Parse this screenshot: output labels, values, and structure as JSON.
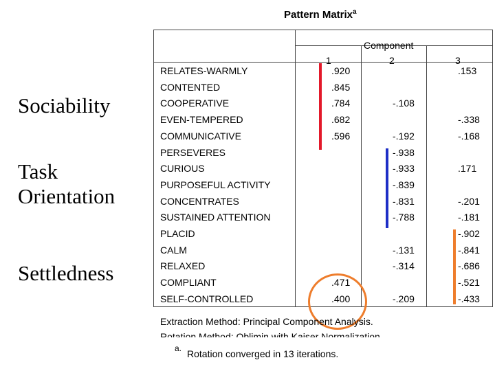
{
  "title": "Pattern Matrix",
  "title_sup": "a",
  "side_labels": {
    "sociability": "Sociability",
    "task_line1": "Task",
    "task_line2": "Orientation",
    "settledness": "Settledness"
  },
  "header": {
    "component": "Component",
    "col1": "1",
    "col2": "2",
    "col3": "3"
  },
  "rows": [
    {
      "name": "RELATES-WARMLY",
      "c1": ".920",
      "c2": "",
      "c3": ".153"
    },
    {
      "name": "CONTENTED",
      "c1": ".845",
      "c2": "",
      "c3": ""
    },
    {
      "name": "COOPERATIVE",
      "c1": ".784",
      "c2": "-.108",
      "c3": ""
    },
    {
      "name": "EVEN-TEMPERED",
      "c1": ".682",
      "c2": "",
      "c3": "-.338"
    },
    {
      "name": "COMMUNICATIVE",
      "c1": ".596",
      "c2": "-.192",
      "c3": "-.168"
    },
    {
      "name": "PERSEVERES",
      "c1": "",
      "c2": "-.938",
      "c3": ""
    },
    {
      "name": "CURIOUS",
      "c1": "",
      "c2": "-.933",
      "c3": ".171"
    },
    {
      "name": "PURPOSEFUL ACTIVITY",
      "c1": "",
      "c2": "-.839",
      "c3": ""
    },
    {
      "name": "CONCENTRATES",
      "c1": "",
      "c2": "-.831",
      "c3": "-.201"
    },
    {
      "name": "SUSTAINED ATTENTION",
      "c1": "",
      "c2": "-.788",
      "c3": "-.181"
    },
    {
      "name": "PLACID",
      "c1": "",
      "c2": "",
      "c3": "-.902"
    },
    {
      "name": "CALM",
      "c1": "",
      "c2": "-.131",
      "c3": "-.841"
    },
    {
      "name": "RELAXED",
      "c1": "",
      "c2": "-.314",
      "c3": "-.686"
    },
    {
      "name": "COMPLIANT",
      "c1": ".471",
      "c2": "",
      "c3": "-.521"
    },
    {
      "name": "SELF-CONTROLLED",
      "c1": ".400",
      "c2": "-.209",
      "c3": "-.433"
    }
  ],
  "footer": {
    "extraction": "Extraction Method: Principal Component Analysis.",
    "rotation": "Rotation Method: Oblimin with Kaiser Normalization.",
    "note_marker": "a.",
    "note": "Rotation converged in 13 iterations."
  },
  "highlight_colors": {
    "sociability": "#e3192a",
    "task": "#1d2ec6",
    "settledness": "#ee7d2c"
  }
}
